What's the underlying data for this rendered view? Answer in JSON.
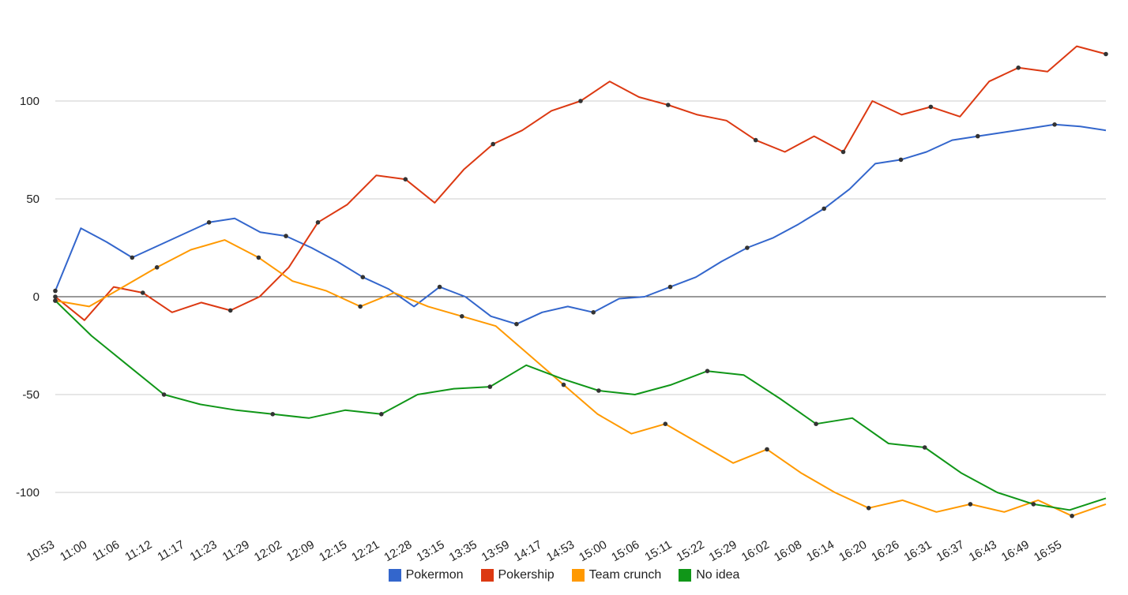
{
  "chart_data": {
    "type": "line",
    "title": "",
    "xlabel": "",
    "ylabel": "",
    "ylim": [
      -110,
      130
    ],
    "y_ticks": [
      100,
      50,
      0,
      -50,
      -100
    ],
    "x_ticks": [
      "10:53",
      "11:00",
      "11:06",
      "11:12",
      "11:17",
      "11:23",
      "11:29",
      "12:02",
      "12:09",
      "12:15",
      "12:21",
      "12:28",
      "13:15",
      "13:35",
      "13:59",
      "14:17",
      "14:53",
      "15:00",
      "15:06",
      "15:11",
      "15:22",
      "15:29",
      "16:02",
      "16:08",
      "16:14",
      "16:20",
      "16:26",
      "16:31",
      "16:37",
      "16:43",
      "16:49",
      "16:55"
    ],
    "grid": true,
    "legend_position": "bottom",
    "series": [
      {
        "name": "Pokermon",
        "color": "#3366cc",
        "values": [
          3,
          35,
          28,
          20,
          26,
          32,
          38,
          40,
          33,
          31,
          25,
          18,
          10,
          4,
          -5,
          5,
          0,
          -10,
          -14,
          -8,
          -5,
          -8,
          -1,
          0,
          5,
          10,
          18,
          25,
          30,
          37,
          45,
          55,
          68,
          70,
          74,
          80,
          82,
          84,
          86,
          88,
          87,
          85
        ]
      },
      {
        "name": "Pokership",
        "color": "#dc3912",
        "values": [
          0,
          -12,
          5,
          2,
          -8,
          -3,
          -7,
          0,
          15,
          38,
          47,
          62,
          60,
          48,
          65,
          78,
          85,
          95,
          100,
          110,
          102,
          98,
          93,
          90,
          80,
          74,
          82,
          74,
          100,
          93,
          97,
          92,
          110,
          117,
          115,
          128,
          124
        ]
      },
      {
        "name": "Team crunch",
        "color": "#ff9900",
        "values": [
          -2,
          -5,
          5,
          15,
          24,
          29,
          20,
          8,
          3,
          -5,
          2,
          -5,
          -10,
          -15,
          -30,
          -45,
          -60,
          -70,
          -65,
          -75,
          -85,
          -78,
          -90,
          -100,
          -108,
          -104,
          -110,
          -106,
          -110,
          -104,
          -112,
          -106
        ]
      },
      {
        "name": "No idea",
        "color": "#109618",
        "values": [
          -2,
          -20,
          -35,
          -50,
          -55,
          -58,
          -60,
          -62,
          -58,
          -60,
          -50,
          -47,
          -46,
          -35,
          -42,
          -48,
          -50,
          -45,
          -38,
          -40,
          -52,
          -65,
          -62,
          -75,
          -77,
          -90,
          -100,
          -106,
          -109,
          -103
        ]
      }
    ]
  }
}
